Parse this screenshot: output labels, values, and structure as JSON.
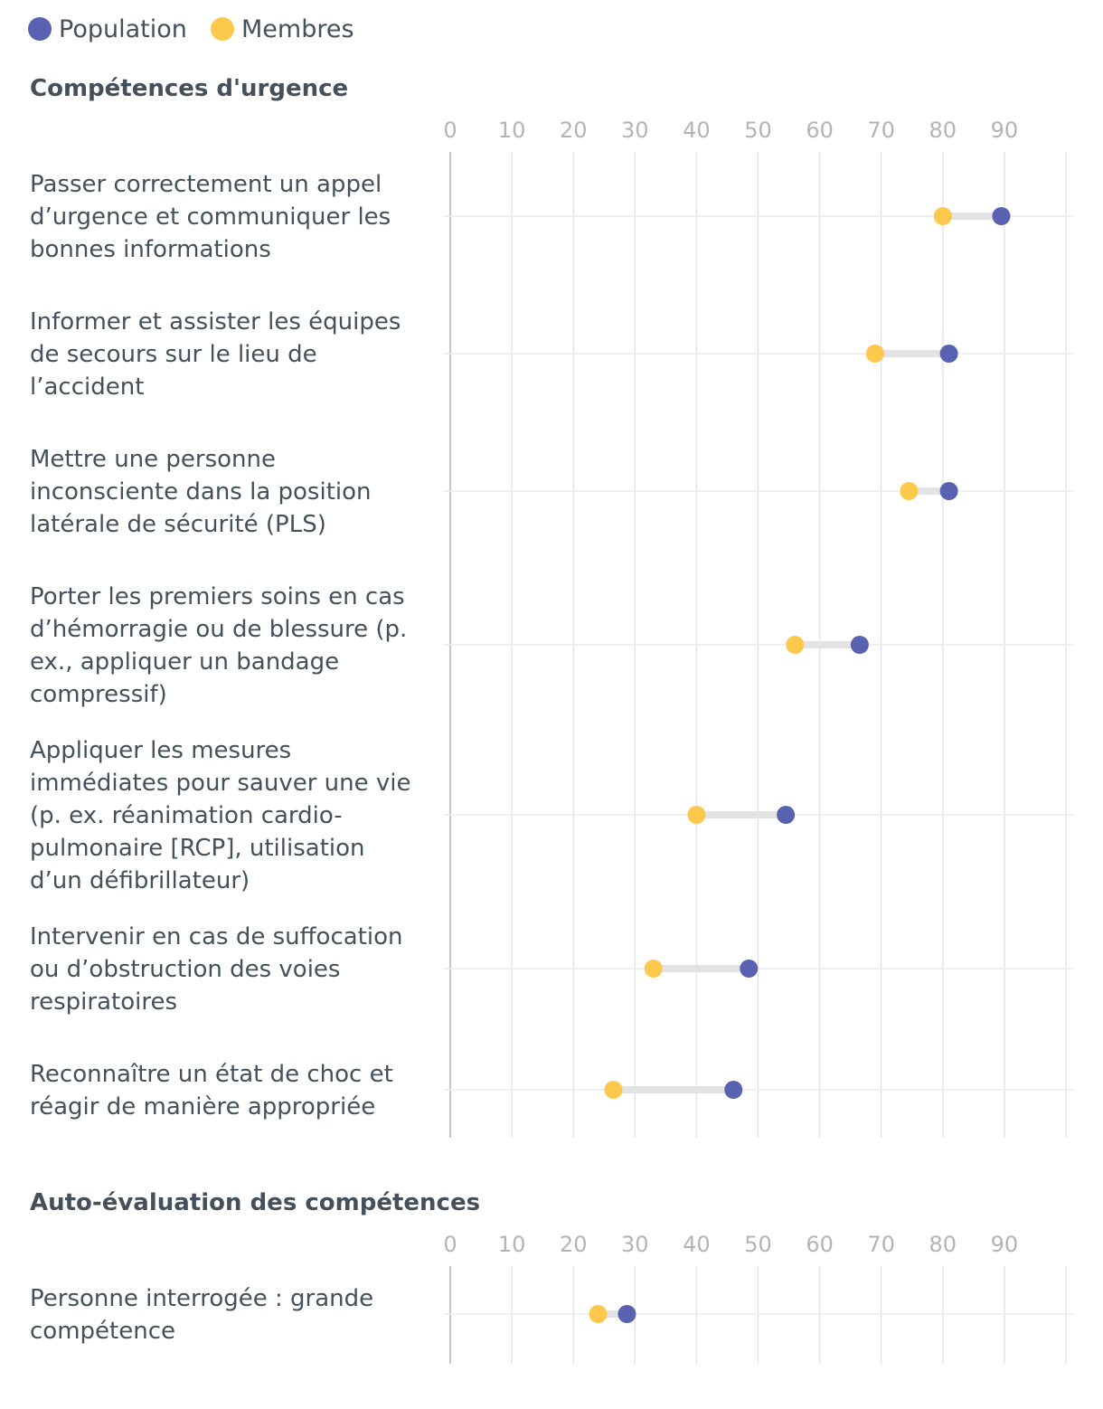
{
  "legend": [
    {
      "name": "Population",
      "color": "#5961b1"
    },
    {
      "name": "Membres",
      "color": "#fcc94d"
    }
  ],
  "chart_data": [
    {
      "type": "dumbbell",
      "title": "Compétences d'urgence",
      "xlim": [
        0,
        100
      ],
      "ticks": [
        0,
        10,
        20,
        30,
        40,
        50,
        60,
        70,
        80,
        90
      ],
      "series": [
        "Population",
        "Membres"
      ],
      "rows": [
        {
          "label": [
            "Passer correctement un appel",
            "d’urgence et communiquer les",
            "bonnes informations"
          ],
          "population": 89.5,
          "membres": 80.0
        },
        {
          "label": [
            "Informer et assister les équipes",
            "de secours sur le lieu de",
            "l’accident"
          ],
          "population": 81.0,
          "membres": 69.0
        },
        {
          "label": [
            "Mettre une personne",
            "inconsciente dans la position",
            "latérale de sécurité (PLS)"
          ],
          "population": 81.0,
          "membres": 74.5
        },
        {
          "label": [
            "Porter les premiers soins en cas",
            "d’hémorragie ou de blessure (p.",
            "ex., appliquer un bandage",
            "compressif)"
          ],
          "population": 66.5,
          "membres": 56.0
        },
        {
          "label": [
            "Appliquer les mesures",
            "immédiates pour sauver une vie",
            "(p. ex. réanimation cardio-",
            "pulmonaire [RCP], utilisation",
            "d’un défibrillateur)"
          ],
          "population": 54.5,
          "membres": 40.0
        },
        {
          "label": [
            "Intervenir en cas de suffocation",
            "ou d’obstruction des voies",
            "respiratoires"
          ],
          "population": 48.5,
          "membres": 33.0
        },
        {
          "label": [
            "Reconnaître un état de choc et",
            "réagir de manière appropriée"
          ],
          "population": 46.0,
          "membres": 26.5
        }
      ]
    },
    {
      "type": "dumbbell",
      "title": "Auto-évaluation des compétences",
      "xlim": [
        0,
        100
      ],
      "ticks": [
        0,
        10,
        20,
        30,
        40,
        50,
        60,
        70,
        80,
        90
      ],
      "series": [
        "Population",
        "Membres"
      ],
      "rows": [
        {
          "label": [
            "Personne interrogée : grande",
            "compétence"
          ],
          "population": 28.7,
          "membres": 24.0
        }
      ]
    }
  ]
}
